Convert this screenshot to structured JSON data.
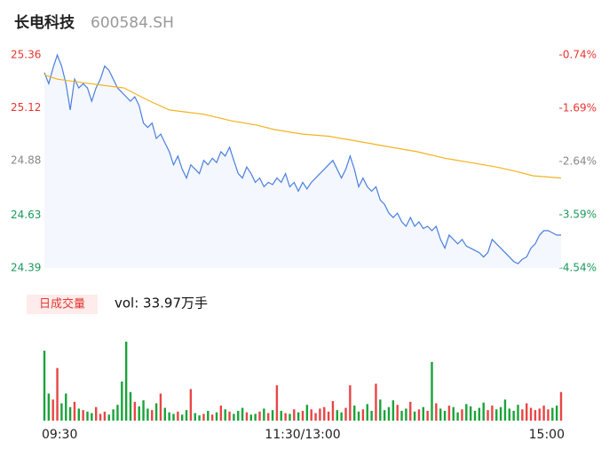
{
  "chart_data": {
    "type": "line",
    "title": "长电科技",
    "subtitle": "600584.SH",
    "x": [
      0,
      2,
      4,
      6,
      8,
      10,
      12,
      14,
      16,
      18,
      20,
      22,
      24,
      26,
      28,
      30,
      32,
      34,
      36,
      38,
      40,
      42,
      44,
      46,
      48,
      50,
      52,
      54,
      56,
      58,
      60,
      62,
      64,
      66,
      68,
      70,
      72,
      74,
      76,
      78,
      80,
      82,
      84,
      86,
      88,
      90,
      92,
      94,
      96,
      98,
      100,
      102,
      104,
      106,
      108,
      110,
      112,
      114,
      116,
      118,
      120,
      122,
      124,
      126,
      128,
      130,
      132,
      134,
      136,
      138,
      140,
      142,
      144,
      146,
      148,
      150,
      152,
      154,
      156,
      158,
      160,
      162,
      164,
      166,
      168,
      170,
      172,
      174,
      176,
      178,
      180,
      182,
      184,
      186,
      188,
      190,
      192,
      194,
      196,
      198,
      200,
      202,
      204,
      206,
      208,
      210,
      212,
      214,
      216,
      218,
      220,
      222,
      224,
      226,
      228,
      230,
      232,
      234,
      236,
      238,
      240
    ],
    "xlim": [
      0,
      240
    ],
    "xticks": [
      {
        "value": 0,
        "label": "09:30"
      },
      {
        "value": 120,
        "label": "11:30/13:00"
      },
      {
        "value": 240,
        "label": "15:00"
      }
    ],
    "ylim": [
      24.39,
      25.36
    ],
    "yticks": [
      24.39,
      24.63,
      24.88,
      25.12,
      25.36
    ],
    "ytick_colors": [
      "#1a9a5a",
      "#1a9a5a",
      "#888888",
      "#e8362f",
      "#e8362f"
    ],
    "y2lim": [
      -4.54,
      -0.74
    ],
    "y2ticks": [
      {
        "value": -4.54,
        "label": "-4.54%"
      },
      {
        "value": -3.59,
        "label": "-3.59%"
      },
      {
        "value": -2.64,
        "label": "-2.64%"
      },
      {
        "value": -1.69,
        "label": "-1.69%"
      },
      {
        "value": -0.74,
        "label": "-0.74%"
      }
    ],
    "series": [
      {
        "color": "#4a7fe0",
        "fill": "#f4f7fd",
        "values": [
          25.28,
          25.23,
          25.3,
          25.36,
          25.31,
          25.23,
          25.11,
          25.25,
          25.21,
          25.23,
          25.21,
          25.15,
          25.21,
          25.25,
          25.31,
          25.29,
          25.25,
          25.21,
          25.19,
          25.17,
          25.15,
          25.17,
          25.13,
          25.05,
          25.03,
          25.05,
          24.98,
          25.0,
          24.96,
          24.92,
          24.86,
          24.9,
          24.84,
          24.8,
          24.86,
          24.84,
          24.82,
          24.88,
          24.86,
          24.89,
          24.87,
          24.92,
          24.9,
          24.94,
          24.88,
          24.82,
          24.8,
          24.85,
          24.82,
          24.78,
          24.8,
          24.76,
          24.78,
          24.77,
          24.8,
          24.78,
          24.82,
          24.76,
          24.78,
          24.74,
          24.78,
          24.75,
          24.78,
          24.8,
          24.82,
          24.84,
          24.86,
          24.88,
          24.84,
          24.8,
          24.84,
          24.9,
          24.84,
          24.76,
          24.8,
          24.76,
          24.74,
          24.76,
          24.7,
          24.68,
          24.64,
          24.62,
          24.64,
          24.6,
          24.58,
          24.62,
          24.58,
          24.6,
          24.57,
          24.58,
          24.56,
          24.58,
          24.52,
          24.48,
          24.54,
          24.52,
          24.5,
          24.52,
          24.49,
          24.48,
          24.47,
          24.46,
          24.44,
          24.46,
          24.52,
          24.5,
          24.48,
          24.46,
          24.44,
          24.42,
          24.41,
          24.43,
          24.44,
          24.48,
          24.5,
          24.54,
          24.56,
          24.56,
          24.55,
          24.54,
          24.54
        ]
      },
      {
        "color": "#f5b220",
        "x": [
          0,
          6,
          21,
          37,
          41,
          49,
          58,
          74,
          87,
          99,
          107,
          120,
          132,
          144,
          161,
          173,
          186,
          198,
          210,
          219,
          227,
          240
        ],
        "values": [
          25.27,
          25.25,
          25.23,
          25.21,
          25.19,
          25.15,
          25.11,
          25.09,
          25.06,
          25.04,
          25.02,
          25.0,
          24.99,
          24.97,
          24.94,
          24.92,
          24.89,
          24.87,
          24.85,
          24.83,
          24.81,
          24.8
        ]
      }
    ],
    "volume": {
      "type": "bar",
      "label": "日成交量",
      "summary": "vol: 33.97万手",
      "ylim": [
        0,
        10500
      ],
      "up_color": "#e84545",
      "down_color": "#1aa33a",
      "values": [
        9300,
        3600,
        2800,
        7000,
        2300,
        3600,
        1800,
        2500,
        1600,
        1400,
        1200,
        1000,
        1800,
        900,
        1200,
        800,
        1500,
        2100,
        5200,
        10500,
        3800,
        2500,
        1900,
        2700,
        1600,
        1400,
        2300,
        3600,
        1700,
        1100,
        900,
        1200,
        800,
        1400,
        4200,
        1000,
        700,
        900,
        1300,
        800,
        1100,
        2000,
        1500,
        1200,
        900,
        1300,
        1700,
        1100,
        800,
        900,
        1200,
        1600,
        1000,
        1400,
        4700,
        1300,
        1000,
        900,
        1500,
        1100,
        1300,
        2100,
        1500,
        1000,
        1600,
        1800,
        1200,
        2600,
        1400,
        1100,
        1700,
        4700,
        2000,
        1200,
        1500,
        2200,
        1300,
        4900,
        2800,
        1400,
        1800,
        2700,
        2100,
        1300,
        1600,
        2500,
        1200,
        1500,
        1800,
        1300,
        7800,
        2300,
        1600,
        1300,
        2000,
        1800,
        1100,
        1500,
        2200,
        1900,
        1300,
        1700,
        2400,
        1400,
        2000,
        1500,
        1800,
        2800,
        1600,
        1300,
        2100,
        1500,
        2300,
        1700,
        1400,
        1600,
        2000,
        1500,
        1700,
        2000,
        3800
      ]
    }
  }
}
